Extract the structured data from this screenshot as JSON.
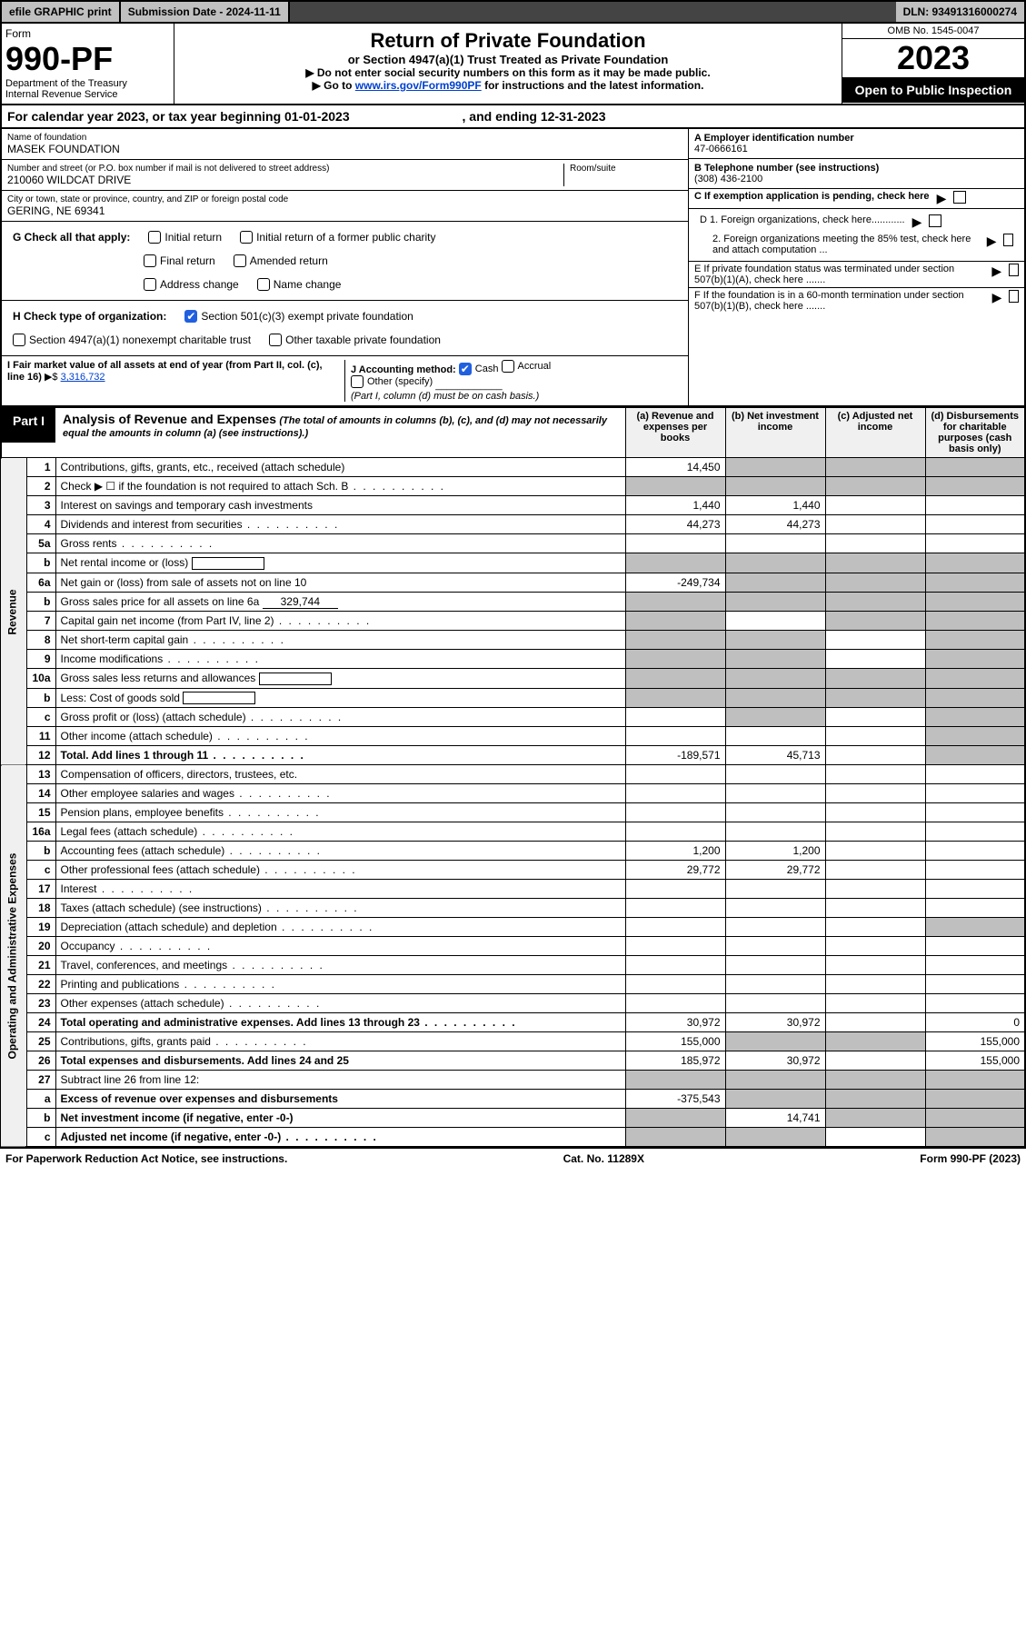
{
  "topbar": {
    "efile": "efile GRAPHIC print",
    "submission_label": "Submission Date - 2024-11-11",
    "dln": "DLN: 93491316000274"
  },
  "header": {
    "form_label": "Form",
    "form_number": "990-PF",
    "dept1": "Department of the Treasury",
    "dept2": "Internal Revenue Service",
    "title": "Return of Private Foundation",
    "subtitle": "or Section 4947(a)(1) Trust Treated as Private Foundation",
    "note1": "▶ Do not enter social security numbers on this form as it may be made public.",
    "note2_prefix": "▶ Go to ",
    "note2_link": "www.irs.gov/Form990PF",
    "note2_suffix": " for instructions and the latest information.",
    "omb": "OMB No. 1545-0047",
    "year": "2023",
    "open_pub": "Open to Public Inspection"
  },
  "calyear": {
    "text_a": "For calendar year 2023, or tax year beginning 01-01-2023",
    "text_b": ", and ending 12-31-2023"
  },
  "entity": {
    "name_label": "Name of foundation",
    "name": "MASEK FOUNDATION",
    "addr_label": "Number and street (or P.O. box number if mail is not delivered to street address)",
    "addr": "210060 WILDCAT DRIVE",
    "room_label": "Room/suite",
    "city_label": "City or town, state or province, country, and ZIP or foreign postal code",
    "city": "GERING, NE  69341"
  },
  "right": {
    "A_label": "A Employer identification number",
    "A_value": "47-0666161",
    "B_label": "B Telephone number (see instructions)",
    "B_value": "(308) 436-2100",
    "C_label": "C If exemption application is pending, check here",
    "D1": "D 1. Foreign organizations, check here............",
    "D2": "2. Foreign organizations meeting the 85% test, check here and attach computation ...",
    "E": "E  If private foundation status was terminated under section 507(b)(1)(A), check here .......",
    "F": "F  If the foundation is in a 60-month termination under section 507(b)(1)(B), check here ......."
  },
  "G": {
    "label": "G Check all that apply:",
    "opts": [
      "Initial return",
      "Initial return of a former public charity",
      "Final return",
      "Amended return",
      "Address change",
      "Name change"
    ]
  },
  "H": {
    "label": "H Check type of organization:",
    "opt1": "Section 501(c)(3) exempt private foundation",
    "opt2": "Section 4947(a)(1) nonexempt charitable trust",
    "opt3": "Other taxable private foundation"
  },
  "I": {
    "label": "I Fair market value of all assets at end of year (from Part II, col. (c), line 16)",
    "marker": "▶$",
    "value": "3,316,732"
  },
  "J": {
    "label": "J Accounting method:",
    "cash": "Cash",
    "accrual": "Accrual",
    "other": "Other (specify)",
    "note": "(Part I, column (d) must be on cash basis.)"
  },
  "part1": {
    "label": "Part I",
    "title": "Analysis of Revenue and Expenses",
    "paren": "(The total of amounts in columns (b), (c), and (d) may not necessarily equal the amounts in column (a) (see instructions).)",
    "cols": {
      "a": "(a)  Revenue and expenses per books",
      "b": "(b)  Net investment income",
      "c": "(c)  Adjusted net income",
      "d": "(d)  Disbursements for charitable purposes (cash basis only)"
    }
  },
  "side": {
    "revenue": "Revenue",
    "opex": "Operating and Administrative Expenses"
  },
  "rows": [
    {
      "n": "1",
      "d": "Contributions, gifts, grants, etc., received (attach schedule)",
      "a": "14,450",
      "shadeB": true,
      "shadeC": true,
      "shadeD": true
    },
    {
      "n": "2",
      "d": "Check ▶ ☐ if the foundation is not required to attach Sch. B",
      "dotted": true,
      "shadeA": true,
      "shadeB": true,
      "shadeC": true,
      "shadeD": true
    },
    {
      "n": "3",
      "d": "Interest on savings and temporary cash investments",
      "a": "1,440",
      "b": "1,440"
    },
    {
      "n": "4",
      "d": "Dividends and interest from securities",
      "dotted": true,
      "a": "44,273",
      "b": "44,273"
    },
    {
      "n": "5a",
      "d": "Gross rents",
      "dotted": true
    },
    {
      "n": "b",
      "d": "Net rental income or (loss)",
      "inlineBox": true,
      "shadeA": true,
      "shadeB": true,
      "shadeC": true,
      "shadeD": true
    },
    {
      "n": "6a",
      "d": "Net gain or (loss) from sale of assets not on line 10",
      "a": "-249,734",
      "shadeB": true,
      "shadeC": true,
      "shadeD": true
    },
    {
      "n": "b",
      "d": "Gross sales price for all assets on line 6a",
      "inlineVal": "329,744",
      "shadeA": true,
      "shadeB": true,
      "shadeC": true,
      "shadeD": true
    },
    {
      "n": "7",
      "d": "Capital gain net income (from Part IV, line 2)",
      "dotted": true,
      "shadeA": true,
      "shadeC": true,
      "shadeD": true
    },
    {
      "n": "8",
      "d": "Net short-term capital gain",
      "dotted": true,
      "shadeA": true,
      "shadeB": true,
      "shadeD": true
    },
    {
      "n": "9",
      "d": "Income modifications",
      "dotted": true,
      "shadeA": true,
      "shadeB": true,
      "shadeD": true
    },
    {
      "n": "10a",
      "d": "Gross sales less returns and allowances",
      "inlineBox": true,
      "shadeA": true,
      "shadeB": true,
      "shadeC": true,
      "shadeD": true
    },
    {
      "n": "b",
      "d": "Less: Cost of goods sold",
      "dotted": true,
      "inlineBox": true,
      "shadeA": true,
      "shadeB": true,
      "shadeC": true,
      "shadeD": true
    },
    {
      "n": "c",
      "d": "Gross profit or (loss) (attach schedule)",
      "dotted": true,
      "shadeB": true,
      "shadeD": true
    },
    {
      "n": "11",
      "d": "Other income (attach schedule)",
      "dotted": true,
      "shadeD": true
    },
    {
      "n": "12",
      "d": "Total. Add lines 1 through 11",
      "dotted": true,
      "bold": true,
      "a": "-189,571",
      "b": "45,713",
      "shadeD": true
    },
    {
      "n": "13",
      "d": "Compensation of officers, directors, trustees, etc."
    },
    {
      "n": "14",
      "d": "Other employee salaries and wages",
      "dotted": true
    },
    {
      "n": "15",
      "d": "Pension plans, employee benefits",
      "dotted": true
    },
    {
      "n": "16a",
      "d": "Legal fees (attach schedule)",
      "dotted": true
    },
    {
      "n": "b",
      "d": "Accounting fees (attach schedule)",
      "dotted": true,
      "a": "1,200",
      "b": "1,200"
    },
    {
      "n": "c",
      "d": "Other professional fees (attach schedule)",
      "dotted": true,
      "a": "29,772",
      "b": "29,772"
    },
    {
      "n": "17",
      "d": "Interest",
      "dotted": true
    },
    {
      "n": "18",
      "d": "Taxes (attach schedule) (see instructions)",
      "dotted": true
    },
    {
      "n": "19",
      "d": "Depreciation (attach schedule) and depletion",
      "dotted": true,
      "shadeD": true
    },
    {
      "n": "20",
      "d": "Occupancy",
      "dotted": true
    },
    {
      "n": "21",
      "d": "Travel, conferences, and meetings",
      "dotted": true
    },
    {
      "n": "22",
      "d": "Printing and publications",
      "dotted": true
    },
    {
      "n": "23",
      "d": "Other expenses (attach schedule)",
      "dotted": true
    },
    {
      "n": "24",
      "d": "Total operating and administrative expenses. Add lines 13 through 23",
      "dotted": true,
      "bold": true,
      "a": "30,972",
      "b": "30,972",
      "d4": "0"
    },
    {
      "n": "25",
      "d": "Contributions, gifts, grants paid",
      "dotted": true,
      "a": "155,000",
      "shadeB": true,
      "shadeC": true,
      "d4": "155,000"
    },
    {
      "n": "26",
      "d": "Total expenses and disbursements. Add lines 24 and 25",
      "bold": true,
      "a": "185,972",
      "b": "30,972",
      "d4": "155,000"
    },
    {
      "n": "27",
      "d": "Subtract line 26 from line 12:",
      "shadeA": true,
      "shadeB": true,
      "shadeC": true,
      "shadeD": true
    },
    {
      "n": "a",
      "d": "Excess of revenue over expenses and disbursements",
      "bold": true,
      "a": "-375,543",
      "shadeB": true,
      "shadeC": true,
      "shadeD": true
    },
    {
      "n": "b",
      "d": "Net investment income (if negative, enter -0-)",
      "bold": true,
      "shadeA": true,
      "b": "14,741",
      "shadeC": true,
      "shadeD": true
    },
    {
      "n": "c",
      "d": "Adjusted net income (if negative, enter -0-)",
      "bold": true,
      "dotted": true,
      "shadeA": true,
      "shadeB": true,
      "shadeD": true
    }
  ],
  "footer": {
    "left": "For Paperwork Reduction Act Notice, see instructions.",
    "mid": "Cat. No. 11289X",
    "right": "Form 990-PF (2023)"
  },
  "colors": {
    "shade": "#bfbfbf",
    "link": "#0040d0",
    "checked_bg": "#2060e0"
  }
}
